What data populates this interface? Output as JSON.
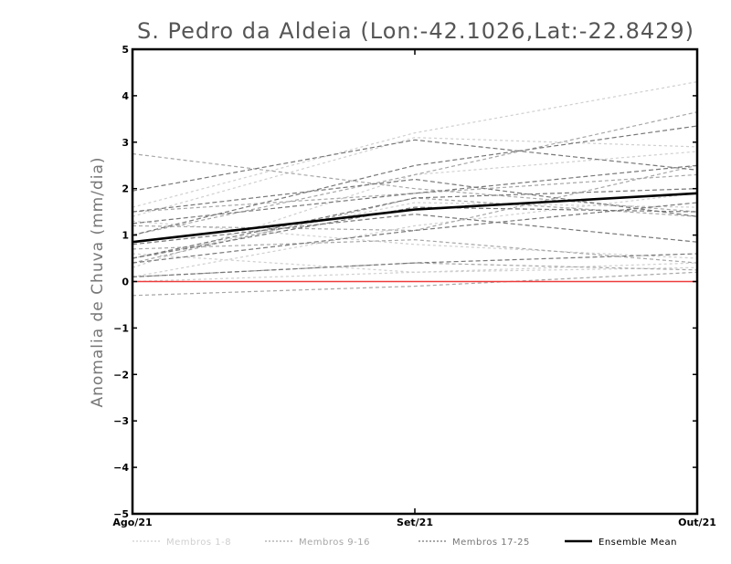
{
  "chart_data": {
    "type": "line",
    "title": "S. Pedro da Aldeia (Lon:-42.1026,Lat:-22.8429)",
    "xlabel": "",
    "ylabel": "Anomalia de Chuva (mm/dia)",
    "categories": [
      "Ago/21",
      "Set/21",
      "Out/21"
    ],
    "ylim": [
      -5,
      5
    ],
    "yticks": [
      "-5",
      "-4",
      "-3",
      "-2",
      "-1",
      "0",
      "1",
      "2",
      "3",
      "4",
      "5"
    ],
    "grid": false,
    "legend_position": "bottom",
    "reference_line": {
      "y": 0,
      "color": "#ee3b3b"
    },
    "series": [
      {
        "name": "Membros 1-8",
        "color": "#cfcfcf",
        "dash": "3,3",
        "width": 1.2,
        "lines": [
          [
            1.6,
            3.2,
            4.3
          ],
          [
            0.3,
            2.3,
            2.8
          ],
          [
            1.4,
            3.1,
            2.9
          ],
          [
            0.0,
            0.2,
            0.4
          ],
          [
            0.5,
            1.7,
            1.6
          ],
          [
            1.3,
            0.8,
            0.5
          ],
          [
            0.1,
            1.2,
            1.9
          ],
          [
            0.6,
            0.2,
            0.3
          ]
        ]
      },
      {
        "name": "Membros 9-16",
        "color": "#a6a6a6",
        "dash": "4,3",
        "width": 1.2,
        "lines": [
          [
            2.75,
            2.0,
            1.5
          ],
          [
            1.0,
            2.3,
            3.65
          ],
          [
            0.1,
            0.4,
            0.25
          ],
          [
            1.2,
            1.1,
            2.5
          ],
          [
            0.4,
            1.8,
            1.4
          ],
          [
            0.7,
            0.9,
            0.4
          ],
          [
            -0.3,
            -0.1,
            0.2
          ],
          [
            1.5,
            1.9,
            2.3
          ]
        ]
      },
      {
        "name": "Membros 17-25",
        "color": "#777777",
        "dash": "5,3",
        "width": 1.2,
        "lines": [
          [
            1.95,
            3.05,
            2.4
          ],
          [
            1.0,
            2.5,
            3.35
          ],
          [
            1.25,
            1.9,
            2.5
          ],
          [
            0.5,
            1.6,
            1.5
          ],
          [
            0.4,
            1.1,
            1.7
          ],
          [
            0.1,
            0.4,
            0.6
          ],
          [
            1.5,
            2.2,
            1.4
          ],
          [
            0.8,
            1.45,
            0.85
          ],
          [
            0.5,
            1.8,
            2.0
          ]
        ]
      },
      {
        "name": "Ensemble Mean",
        "color": "#000000",
        "dash": "",
        "width": 2.6,
        "lines": [
          [
            0.85,
            1.55,
            1.9
          ]
        ]
      }
    ]
  }
}
